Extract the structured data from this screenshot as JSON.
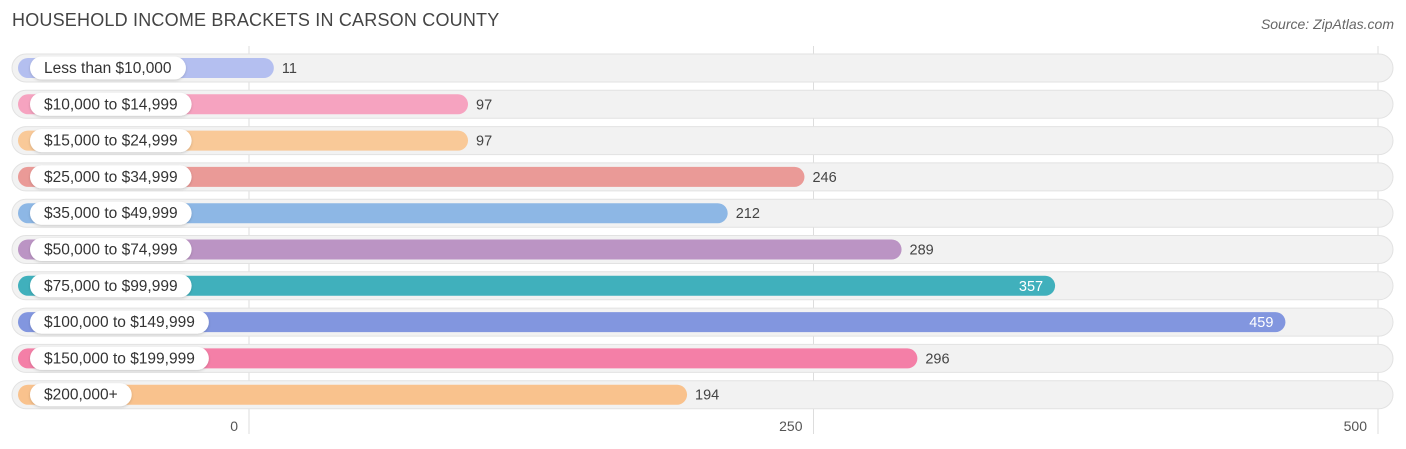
{
  "header": {
    "title": "HOUSEHOLD INCOME BRACKETS IN CARSON COUNTY",
    "source": "Source: ZipAtlas.com"
  },
  "chart_data": {
    "type": "bar",
    "orientation": "horizontal",
    "title": "HOUSEHOLD INCOME BRACKETS IN CARSON COUNTY",
    "xlabel": "",
    "ylabel": "",
    "xlim": [
      0,
      500
    ],
    "x_ticks": [
      "0",
      "250",
      "500"
    ],
    "grid": true,
    "categories": [
      "Less than $10,000",
      "$10,000 to $14,999",
      "$15,000 to $24,999",
      "$25,000 to $34,999",
      "$35,000 to $49,999",
      "$50,000 to $74,999",
      "$75,000 to $99,999",
      "$100,000 to $149,999",
      "$150,000 to $199,999",
      "$200,000+"
    ],
    "values": [
      11,
      97,
      97,
      246,
      212,
      289,
      357,
      459,
      296,
      194
    ],
    "colors": [
      "#b4bff0",
      "#f6a3c0",
      "#f9c998",
      "#ea9a97",
      "#8db7e5",
      "#bb94c4",
      "#40b0bc",
      "#8296df",
      "#f47fa7",
      "#f9c28d"
    ],
    "value_label_inside": [
      false,
      false,
      false,
      false,
      false,
      false,
      true,
      true,
      false,
      false
    ]
  }
}
